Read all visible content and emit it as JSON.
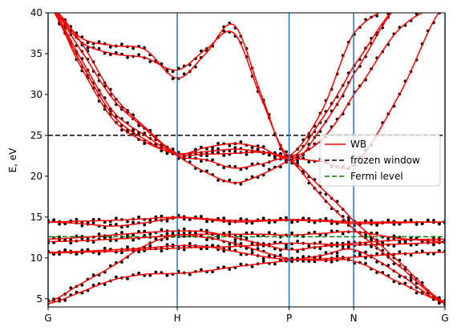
{
  "chart_data": {
    "type": "line",
    "ylabel": "E, eV",
    "ylim": [
      4,
      40
    ],
    "yticks": [
      5,
      10,
      15,
      20,
      25,
      30,
      35,
      40
    ],
    "xticks": [
      {
        "label": "G",
        "x": 0.0
      },
      {
        "label": "H",
        "x": 1.0
      },
      {
        "label": "P",
        "x": 1.866
      },
      {
        "label": "N",
        "x": 2.366
      },
      {
        "label": "G",
        "x": 3.073
      }
    ],
    "xlim": [
      0.0,
      3.073
    ],
    "vlines_color": "#1f77b4",
    "hlines": [
      {
        "name": "frozen window",
        "y": 25.0,
        "color": "#000000",
        "style": "dashed"
      },
      {
        "name": "Fermi level",
        "y": 12.6,
        "color": "#008000",
        "style": "dashed"
      }
    ],
    "legend": {
      "placement": "right",
      "entries": [
        {
          "label": "WB",
          "color": "#ff0000",
          "style": "solid"
        },
        {
          "label": "frozen window",
          "color": "#000000",
          "style": "dashed"
        },
        {
          "label": "Fermi level",
          "color": "#008000",
          "style": "dashed"
        }
      ]
    },
    "series": [
      {
        "name": "WB",
        "color": "#ff0000",
        "x": [
          0.0,
          0.25,
          0.5,
          0.75,
          1.0,
          1.22,
          1.44,
          1.65,
          1.866,
          2.12,
          2.366,
          2.72,
          3.073
        ],
        "y": [
          4.4,
          5.8,
          7.3,
          8.0,
          8.1,
          8.4,
          8.9,
          9.3,
          9.7,
          10.3,
          11.0,
          8.0,
          4.4
        ]
      },
      {
        "name": "WB",
        "color": "#ff0000",
        "x": [
          0.0,
          0.25,
          0.5,
          0.75,
          1.0,
          1.22,
          1.44,
          1.65,
          1.866,
          2.12,
          2.366,
          2.72,
          3.073
        ],
        "y": [
          4.6,
          6.8,
          9.0,
          11.5,
          12.8,
          12.5,
          11.8,
          10.8,
          9.9,
          9.7,
          9.6,
          7.0,
          4.6
        ]
      },
      {
        "name": "WB",
        "color": "#ff0000",
        "x": [
          0.0,
          0.25,
          0.5,
          0.75,
          1.0,
          1.22,
          1.44,
          1.65,
          1.866,
          2.12,
          2.366,
          2.72,
          3.073
        ],
        "y": [
          10.6,
          10.7,
          10.8,
          11.0,
          11.2,
          11.3,
          11.4,
          11.6,
          11.8,
          11.7,
          11.6,
          11.7,
          11.9
        ]
      },
      {
        "name": "WB",
        "color": "#ff0000",
        "x": [
          0.0,
          0.25,
          0.5,
          0.75,
          1.0,
          1.22,
          1.44,
          1.65,
          1.866,
          2.12,
          2.366,
          2.72,
          3.073
        ],
        "y": [
          10.7,
          10.8,
          11.0,
          11.2,
          11.5,
          11.4,
          10.8,
          10.2,
          9.8,
          9.9,
          10.1,
          10.5,
          10.7
        ]
      },
      {
        "name": "WB",
        "color": "#ff0000",
        "x": [
          0.0,
          0.25,
          0.5,
          0.75,
          1.0,
          1.22,
          1.44,
          1.65,
          1.866,
          2.12,
          2.366,
          2.72,
          3.073
        ],
        "y": [
          12.0,
          12.1,
          12.3,
          12.5,
          12.8,
          12.9,
          12.9,
          12.9,
          12.8,
          13.0,
          13.2,
          12.4,
          12.0
        ]
      },
      {
        "name": "WB",
        "color": "#ff0000",
        "x": [
          0.0,
          0.25,
          0.5,
          0.75,
          1.0,
          1.22,
          1.44,
          1.65,
          1.866,
          2.12,
          2.366,
          2.72,
          3.073
        ],
        "y": [
          12.3,
          12.5,
          12.8,
          13.1,
          13.3,
          13.2,
          12.5,
          11.7,
          11.0,
          11.4,
          11.8,
          12.2,
          12.3
        ]
      },
      {
        "name": "WB",
        "color": "#ff0000",
        "x": [
          0.0,
          0.25,
          0.5,
          0.75,
          1.0,
          1.22,
          1.44,
          1.65,
          1.866,
          2.12,
          2.366,
          2.72,
          3.073
        ],
        "y": [
          14.4,
          14.5,
          14.6,
          14.8,
          15.0,
          14.8,
          14.6,
          14.6,
          14.7,
          14.6,
          14.4,
          14.4,
          14.4
        ]
      },
      {
        "name": "WB",
        "color": "#ff0000",
        "x": [
          0.0,
          0.25,
          0.5,
          0.75,
          1.0,
          1.22,
          1.44,
          1.65,
          1.866,
          2.12,
          2.366,
          2.72,
          3.073
        ],
        "y": [
          14.4,
          14.2,
          13.9,
          14.3,
          14.9,
          14.7,
          14.4,
          14.5,
          14.6,
          14.5,
          14.2,
          14.3,
          14.4
        ]
      },
      {
        "name": "WB",
        "color": "#ff0000",
        "x": [
          0.0,
          0.25,
          0.5,
          0.75,
          1.0,
          1.22,
          1.44,
          1.65,
          1.866,
          2.12,
          2.366,
          2.72,
          3.073
        ],
        "y": [
          41.0,
          36.5,
          30.0,
          26.0,
          22.8,
          22.7,
          22.8,
          22.9,
          22.0,
          17.5,
          13.5,
          9.0,
          4.5
        ]
      },
      {
        "name": "WB",
        "color": "#ff0000",
        "x": [
          0.0,
          0.25,
          0.5,
          0.75,
          1.0,
          1.22,
          1.44,
          1.65,
          1.866,
          2.12,
          2.366,
          2.72,
          3.073
        ],
        "y": [
          41.0,
          35.5,
          29.5,
          25.8,
          22.6,
          22.0,
          21.0,
          21.5,
          22.0,
          18.5,
          14.5,
          9.5,
          4.6
        ]
      },
      {
        "name": "WB",
        "color": "#ff0000",
        "x": [
          0.0,
          0.25,
          0.5,
          0.75,
          1.0,
          1.22,
          1.44,
          1.65,
          1.866,
          2.12,
          2.366,
          2.72,
          3.073
        ],
        "y": [
          41.0,
          34.5,
          28.0,
          25.0,
          22.5,
          20.5,
          19.2,
          20.2,
          22.0,
          24.5,
          30.0,
          38.0,
          41.0
        ]
      },
      {
        "name": "WB",
        "color": "#ff0000",
        "x": [
          0.0,
          0.25,
          0.5,
          0.75,
          1.0,
          1.22,
          1.44,
          1.65,
          1.866,
          2.12,
          2.366,
          2.72,
          3.073
        ],
        "y": [
          41.0,
          37.0,
          36.0,
          35.5,
          32.0,
          35.0,
          38.5,
          30.0,
          22.0,
          26.0,
          32.5,
          41.0,
          41.0
        ]
      },
      {
        "name": "WB",
        "color": "#ff0000",
        "x": [
          0.0,
          0.25,
          0.5,
          0.75,
          1.0,
          1.22,
          1.44,
          1.65,
          1.866,
          2.12,
          2.366,
          2.72,
          3.073
        ],
        "y": [
          41.0,
          36.5,
          35.0,
          34.5,
          33.0,
          35.5,
          37.5,
          29.5,
          22.5,
          27.0,
          33.5,
          41.0,
          41.0
        ]
      },
      {
        "name": "WB",
        "color": "#ff0000",
        "x": [
          0.0,
          0.25,
          0.5,
          0.75,
          1.0,
          1.22,
          1.44,
          1.65,
          1.866,
          2.12,
          2.366,
          2.72,
          3.073
        ],
        "y": [
          41.0,
          34.0,
          27.5,
          24.5,
          22.7,
          23.5,
          24.0,
          23.5,
          22.5,
          28.0,
          37.5,
          41.0,
          41.0
        ]
      },
      {
        "name": "WB",
        "color": "#ff0000",
        "x": [
          0.0,
          0.25,
          0.5,
          0.75,
          1.0,
          1.22,
          1.44,
          1.65,
          1.866,
          2.12,
          2.366,
          2.72,
          3.073
        ],
        "y": [
          41.0,
          33.5,
          27.0,
          24.2,
          22.8,
          23.0,
          23.3,
          23.0,
          22.3,
          21.8,
          21.5,
          30.0,
          41.0
        ]
      }
    ]
  }
}
